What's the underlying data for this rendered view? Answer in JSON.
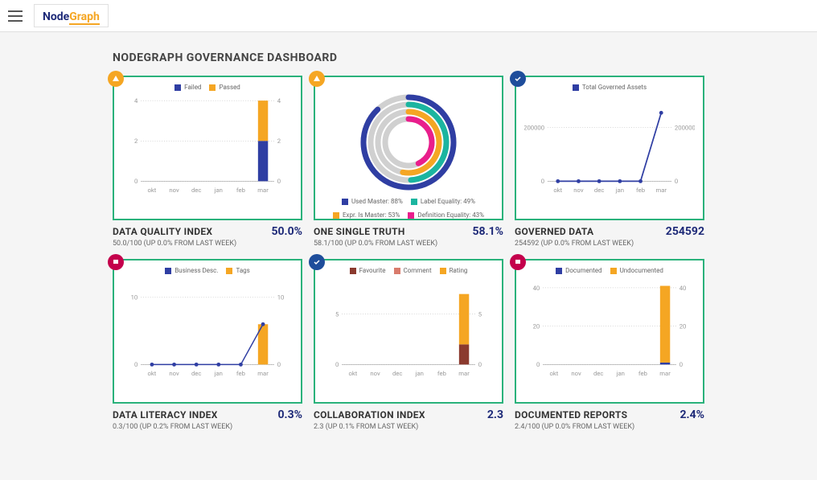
{
  "brand": {
    "part1": "Node",
    "part2": "Graph"
  },
  "page_title": "NODEGRAPH GOVERNANCE DASHBOARD",
  "colors": {
    "blue": "#2f3ea3",
    "orange": "#f5a623",
    "teal": "#1bb5a0",
    "magenta": "#e91e8c",
    "maroon": "#8b3a2e",
    "salmon": "#d97b6c",
    "grey": "#d0d0d0",
    "green_border": "#2ab27b"
  },
  "months": [
    "okt",
    "nov",
    "dec",
    "jan",
    "feb",
    "mar"
  ],
  "cards": {
    "dqi": {
      "badge": "warn",
      "title": "DATA QUALITY INDEX",
      "value": "50.0%",
      "sub": "50.0/100 (UP 0.0% FROM LAST WEEK)",
      "type": "stacked-bar",
      "legend": [
        {
          "label": "Failed",
          "color": "#2f3ea3"
        },
        {
          "label": "Passed",
          "color": "#f5a623"
        }
      ],
      "ylim": [
        0,
        4
      ],
      "yticks": [
        0,
        2,
        4
      ],
      "series": {
        "failed": [
          0,
          0,
          0,
          0,
          0,
          2
        ],
        "passed": [
          0,
          0,
          0,
          0,
          0,
          2
        ]
      }
    },
    "ost": {
      "badge": "warn",
      "title": "ONE SINGLE TRUTH",
      "value": "58.1%",
      "sub": "58.1/100 (UP 0.0% FROM LAST WEEK)",
      "type": "radial",
      "legend": [
        {
          "label": "Used Master: 88%",
          "color": "#2f3ea3",
          "pct": 88
        },
        {
          "label": "Label Equality: 49%",
          "color": "#1bb5a0",
          "pct": 49
        },
        {
          "label": "Expr. Is Master: 53%",
          "color": "#f5a623",
          "pct": 53
        },
        {
          "label": "Definition Equality: 43%",
          "color": "#e91e8c",
          "pct": 43
        }
      ]
    },
    "gd": {
      "badge": "ok",
      "title": "GOVERNED DATA",
      "value": "254592",
      "sub": "254592 (UP 0.0% FROM LAST WEEK)",
      "type": "line",
      "legend": [
        {
          "label": "Total Governed Assets",
          "color": "#2f3ea3"
        }
      ],
      "ylim": [
        0,
        300000
      ],
      "yticks": [
        0,
        200000
      ],
      "series": {
        "vals": [
          0,
          0,
          0,
          0,
          0,
          254592
        ]
      }
    },
    "dli": {
      "badge": "alert",
      "title": "DATA LITERACY INDEX",
      "value": "0.3%",
      "sub": "0.3/100 (UP 0.2% FROM LAST WEEK)",
      "type": "bar-line",
      "legend": [
        {
          "label": "Business Desc.",
          "color": "#2f3ea3"
        },
        {
          "label": "Tags",
          "color": "#f5a623"
        }
      ],
      "ylim": [
        0,
        12
      ],
      "yticks_left": [
        0,
        5
      ],
      "yticks_right": [
        0,
        10
      ],
      "series": {
        "line": [
          0,
          0,
          0,
          0,
          0,
          6
        ],
        "bar": [
          0,
          0,
          0,
          0,
          0,
          6
        ]
      }
    },
    "ci": {
      "badge": "ok",
      "title": "COLLABORATION INDEX",
      "value": "2.3",
      "sub": "2.3 (UP 0.1% FROM LAST WEEK)",
      "type": "stacked-bar-3",
      "legend": [
        {
          "label": "Favourite",
          "color": "#8b3a2e"
        },
        {
          "label": "Comment",
          "color": "#d97b6c"
        },
        {
          "label": "Rating",
          "color": "#f5a623"
        }
      ],
      "ylim": [
        0,
        8
      ],
      "yticks": [
        0,
        5
      ],
      "series": {
        "favourite": [
          0,
          0,
          0,
          0,
          0,
          2
        ],
        "comment": [
          0,
          0,
          0,
          0,
          0,
          0
        ],
        "rating": [
          0,
          0,
          0,
          0,
          0,
          5
        ]
      }
    },
    "dr": {
      "badge": "alert",
      "title": "DOCUMENTED REPORTS",
      "value": "2.4%",
      "sub": "2.4/100 (UP 0.0% FROM LAST WEEK)",
      "type": "stacked-bar",
      "legend": [
        {
          "label": "Documented",
          "color": "#2f3ea3"
        },
        {
          "label": "Undocumented",
          "color": "#f5a623"
        }
      ],
      "ylim": [
        0,
        42
      ],
      "yticks": [
        0,
        20,
        40
      ],
      "series": {
        "a": [
          0,
          0,
          0,
          0,
          0,
          1
        ],
        "b": [
          0,
          0,
          0,
          0,
          0,
          40
        ]
      }
    }
  }
}
